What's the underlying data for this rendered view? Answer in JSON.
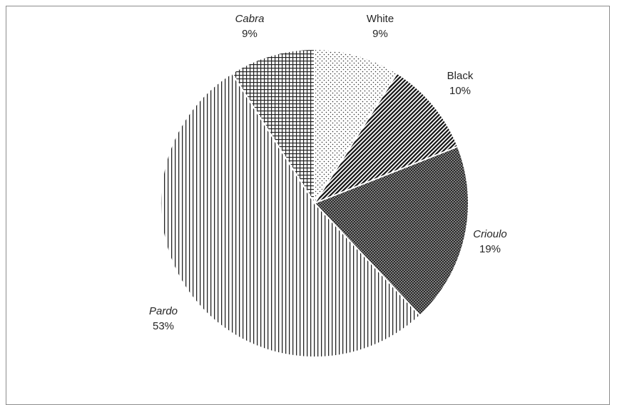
{
  "chart_data": {
    "type": "pie",
    "categories": [
      "White",
      "Black",
      "Crioulo",
      "Pardo",
      "Cabra"
    ],
    "values": [
      9,
      10,
      19,
      53,
      9
    ],
    "labels": [
      "9%",
      "10%",
      "19%",
      "53%",
      "9%"
    ],
    "italic": [
      false,
      false,
      true,
      true,
      true
    ],
    "patterns": [
      "dots-sparse",
      "diagonal-dense",
      "dots-dense-dark",
      "vertical-lines",
      "crosshatch"
    ],
    "title": "",
    "legend": "none"
  }
}
